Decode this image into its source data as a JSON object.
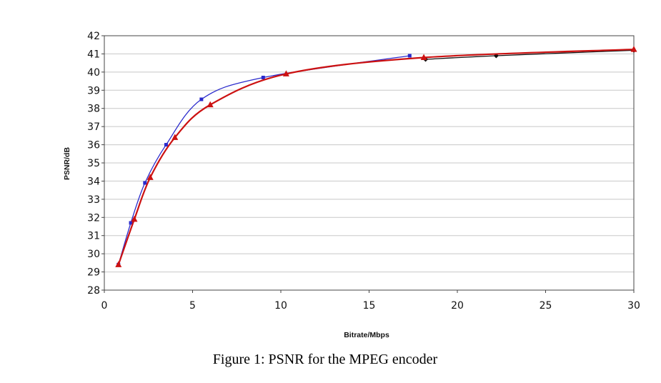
{
  "chart_data": {
    "type": "line",
    "title": "",
    "xlabel": "Bitrate/Mbps",
    "ylabel": "PSNR/dB",
    "xlim": [
      0,
      30
    ],
    "ylim": [
      28,
      42
    ],
    "xticks": [
      0,
      5,
      10,
      15,
      20,
      25,
      30
    ],
    "yticks": [
      28,
      29,
      30,
      31,
      32,
      33,
      34,
      35,
      36,
      37,
      38,
      39,
      40,
      41,
      42
    ],
    "grid": "horizontal",
    "legend": "none",
    "series": [
      {
        "color": "#2a2acc",
        "marker": "square",
        "x": [
          0.8,
          1.5,
          2.3,
          3.5,
          5.5,
          9.0,
          17.3
        ],
        "y": [
          29.4,
          31.7,
          33.9,
          36.0,
          38.5,
          39.7,
          40.9
        ]
      },
      {
        "color": "#111111",
        "marker": "diamond",
        "x": [
          18.2,
          22.2,
          30.0
        ],
        "y": [
          40.7,
          40.9,
          41.2
        ]
      },
      {
        "color": "#cc1111",
        "marker": "triangle",
        "x": [
          0.8,
          1.7,
          2.6,
          4.0,
          6.0,
          10.3,
          18.1,
          30.0
        ],
        "y": [
          29.4,
          31.9,
          34.2,
          36.4,
          38.2,
          39.9,
          40.8,
          41.25
        ]
      }
    ]
  },
  "caption": "Figure 1: PSNR for the MPEG encoder"
}
